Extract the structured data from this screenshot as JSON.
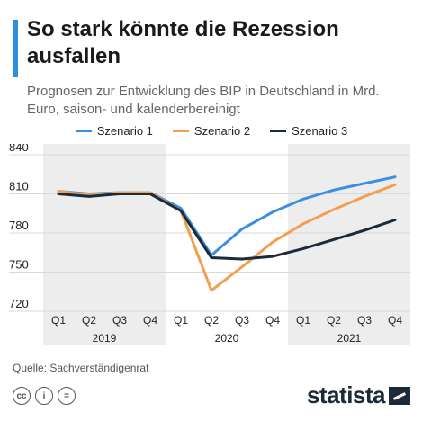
{
  "header": {
    "title": "So stark könnte die Rezession ausfallen",
    "subtitle": "Prognosen zur Entwicklung des BIP in Deutschland in Mrd. Euro, saison- und kalenderbereinigt"
  },
  "colors": {
    "accent": "#2e8fe0",
    "band": "#ededed",
    "grid": "#d9d9d9"
  },
  "chart_data": {
    "type": "line",
    "title": "So stark könnte die Rezession ausfallen",
    "subtitle": "Prognosen zur Entwicklung des BIP in Deutschland in Mrd. Euro, saison- und kalenderbereinigt",
    "categories": [
      "Q1",
      "Q2",
      "Q3",
      "Q4",
      "Q1",
      "Q2",
      "Q3",
      "Q4",
      "Q1",
      "Q2",
      "Q3",
      "Q4"
    ],
    "year_groups": [
      {
        "label": "2019",
        "start": 0,
        "end": 3
      },
      {
        "label": "2020",
        "start": 4,
        "end": 7
      },
      {
        "label": "2021",
        "start": 8,
        "end": 11
      }
    ],
    "shaded_years": [
      "2019",
      "2021"
    ],
    "yticks": [
      720,
      750,
      780,
      810,
      840
    ],
    "ylim": [
      720,
      840
    ],
    "grid": true,
    "legend_position": "top",
    "series": [
      {
        "name": "Szenario 1",
        "color": "#3b8fde",
        "values": [
          812,
          810,
          811,
          811,
          799,
          763,
          783,
          796,
          806,
          813,
          818,
          823
        ]
      },
      {
        "name": "Szenario 2",
        "color": "#f0a050",
        "values": [
          812,
          809,
          811,
          811,
          797,
          736,
          754,
          773,
          787,
          798,
          808,
          817
        ]
      },
      {
        "name": "Szenario 3",
        "color": "#1c2a3a",
        "values": [
          810,
          808,
          810,
          810,
          797,
          761,
          760,
          762,
          768,
          775,
          782,
          790
        ]
      }
    ]
  },
  "footer": {
    "source": "Quelle: Sachverständigenrat",
    "cc_icons": [
      {
        "icon": "cc-icon",
        "text": "cc"
      },
      {
        "icon": "by-icon",
        "text": "i"
      },
      {
        "icon": "nd-icon",
        "text": "="
      }
    ],
    "brand": "statista"
  }
}
